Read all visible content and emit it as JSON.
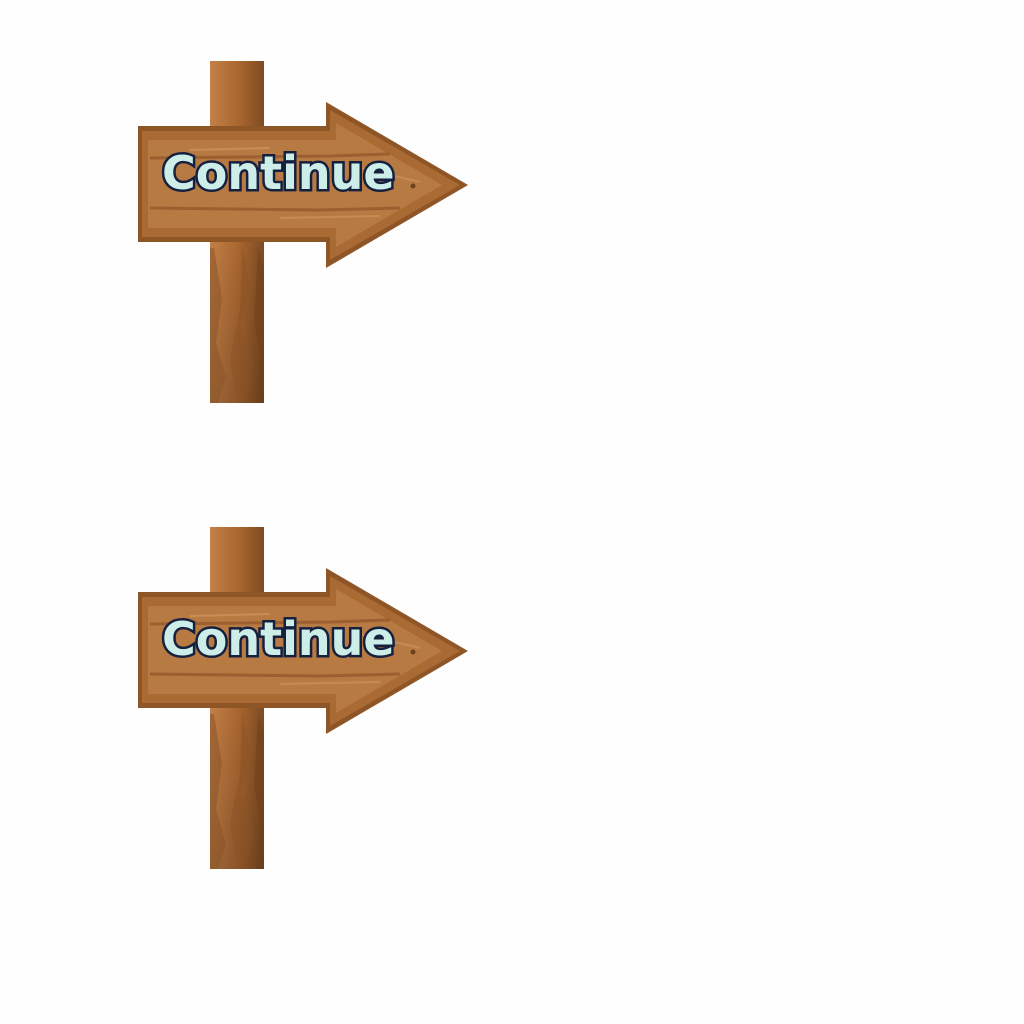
{
  "signs": [
    {
      "label": "Continue"
    },
    {
      "label": "Continue"
    }
  ],
  "colors": {
    "wood_light": "#b57840",
    "wood_mid": "#a0642e",
    "wood_dark": "#7a4a22",
    "text_fill": "#cdeee8",
    "text_outline": "#16203f"
  }
}
